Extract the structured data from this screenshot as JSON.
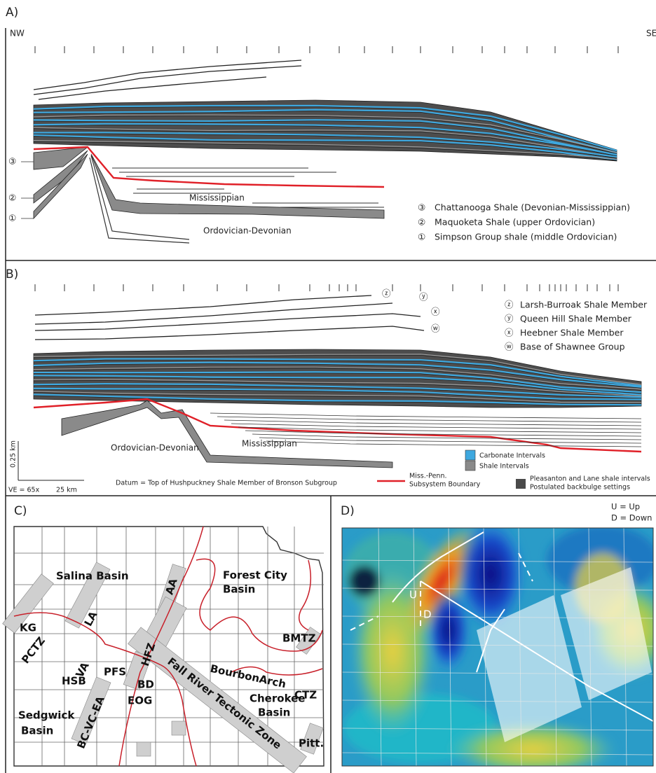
{
  "panel_a": {
    "label": "A)",
    "left_dir": "NW",
    "right_dir": "SE",
    "units": [
      "Mississippian",
      "Ordovician-Devonian"
    ],
    "callouts": [
      "③",
      "②",
      "①"
    ],
    "legend": [
      {
        "marker": "③",
        "text": "Chattanooga Shale (Devonian-Mississippian)"
      },
      {
        "marker": "②",
        "text": "Maquoketa Shale (upper Ordovician)"
      },
      {
        "marker": "①",
        "text": "Simpson Group shale (middle Ordovician)"
      }
    ]
  },
  "panel_b": {
    "label": "B)",
    "callouts": [
      "ⓩ",
      "ⓨ",
      "ⓧ",
      "ⓦ"
    ],
    "legend": [
      {
        "marker": "ⓩ",
        "text": "Larsh-Burroak Shale Member"
      },
      {
        "marker": "ⓨ",
        "text": "Queen Hill Shale Member"
      },
      {
        "marker": "ⓧ",
        "text": "Heebner Shale Member"
      },
      {
        "marker": "ⓦ",
        "text": "Base of Shawnee Group"
      }
    ],
    "units": [
      "Ordovician-Devonian",
      "Mississippian"
    ],
    "scale_vertical": "0.25 km",
    "vertical_exaggeration": "VE = 65x",
    "scale_horizontal": "25 km",
    "datum": "Datum = Top of Hushpuckney Shale Member of Bronson Subgroup",
    "swatches": [
      "Carbonate Intervals",
      "Shale Intervals",
      [
        "Miss.-Penn.",
        "Subsystem Boundary"
      ],
      [
        "Pleasanton and Lane shale intervals",
        "Postulated backbulge settings"
      ]
    ]
  },
  "panel_c": {
    "label": "C)",
    "labels": [
      "Salina Basin",
      "Forest City",
      "Basin",
      "KG",
      "LA",
      "AA",
      "PCTZ",
      "VA",
      "HFZ",
      "HSB",
      "PFS",
      "BD",
      "EOG",
      "BourbonArch",
      "BMTZ",
      "Cherokee",
      "Basin",
      "CTZ",
      "Sedgwick",
      "Basin",
      "BC-VC-EA",
      "Fall River Tectonic Zone",
      "Pitt."
    ]
  },
  "panel_d": {
    "label": "D)",
    "legend": [
      "U = Up",
      "D = Down"
    ],
    "fault_up": "U",
    "fault_down": "D"
  }
}
